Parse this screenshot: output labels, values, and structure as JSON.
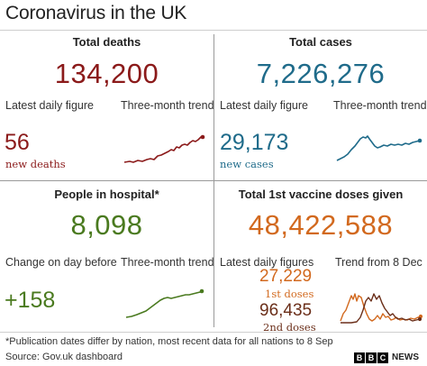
{
  "header": {
    "title": "Coronavirus in the UK"
  },
  "colors": {
    "deaths": "#8b1a1a",
    "cases": "#1f6b8a",
    "hospital": "#4a7a1f",
    "vaccine": "#d2691e",
    "vaccine_dark": "#6b2f1a"
  },
  "deaths": {
    "heading": "Total deaths",
    "total": "134,200",
    "daily_label": "Latest daily figure",
    "trend_label": "Three-month trend",
    "daily_value": "56",
    "daily_sub": "new deaths"
  },
  "cases": {
    "heading": "Total cases",
    "total": "7,226,276",
    "daily_label": "Latest daily figure",
    "trend_label": "Three-month trend",
    "daily_value": "29,173",
    "daily_sub": "new cases"
  },
  "hospital": {
    "heading": "People in hospital*",
    "total": "8,098",
    "change_label": "Change on day before",
    "trend_label": "Three-month trend",
    "change_value": "+158"
  },
  "vaccine": {
    "heading": "Total 1st vaccine doses given",
    "total": "48,422,588",
    "daily_label": "Latest daily figures",
    "trend_label": "Trend from 8 Dec",
    "first_value": "27,229",
    "first_sub": "1st doses",
    "second_value": "96,435",
    "second_sub": "2nd doses"
  },
  "footer": {
    "footnote": "*Publication dates differ by nation, most recent data for all nations to 8 Sep",
    "source": "Source: Gov.uk dashboard",
    "logo_letters": [
      "B",
      "B",
      "C"
    ],
    "logo_text": "NEWS"
  }
}
